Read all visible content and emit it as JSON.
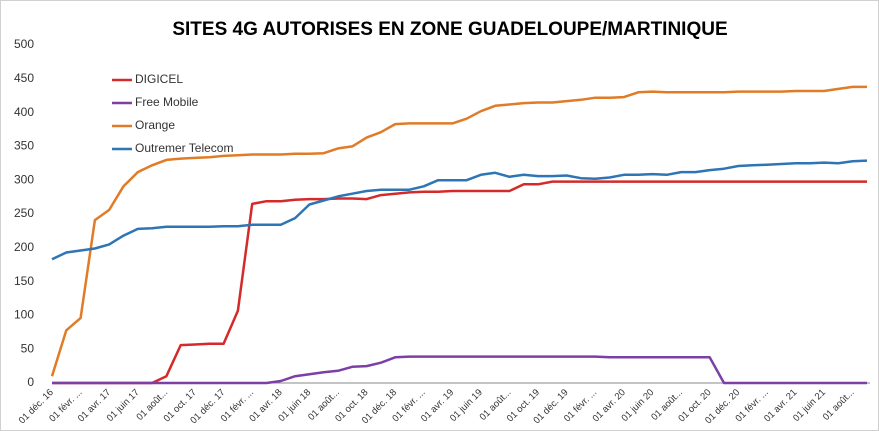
{
  "chart_data": {
    "type": "line",
    "title": "SITES 4G AUTORISES EN ZONE GUADELOUPE/MARTINIQUE",
    "categories": [
      "01 déc. 16",
      null,
      "01 févr. ...",
      null,
      "01 avr. 17",
      null,
      "01 juin 17",
      null,
      "01 août...",
      null,
      "01 oct. 17",
      null,
      "01 déc. 17",
      null,
      "01 févr. ...",
      null,
      "01 avr. 18",
      null,
      "01 juin 18",
      null,
      "01 août...",
      null,
      "01 oct. 18",
      null,
      "01 déc. 18",
      null,
      "01 févr. ...",
      null,
      "01 avr. 19",
      null,
      "01 juin 19",
      null,
      "01 août...",
      null,
      "01 oct. 19",
      null,
      "01 déc. 19",
      null,
      "01 févr. ...",
      null,
      "01 avr. 20",
      null,
      "01 juin 20",
      null,
      "01 août...",
      null,
      "01 oct. 20",
      null,
      "01 déc. 20",
      null,
      "01 févr. ...",
      null,
      "01 avr. 21",
      null,
      "01 juin 21",
      null,
      "01 août...",
      null
    ],
    "series": [
      {
        "name": "DIGICEL",
        "color": "#d42a2a",
        "values": [
          0,
          0,
          0,
          0,
          0,
          0,
          0,
          0,
          10,
          56,
          57,
          58,
          58,
          107,
          265,
          269,
          269,
          271,
          272,
          272,
          273,
          273,
          272,
          278,
          280,
          282,
          283,
          283,
          284,
          284,
          284,
          284,
          284,
          294,
          294,
          298,
          298,
          298,
          298,
          298,
          298,
          298,
          298,
          298,
          298,
          298,
          298,
          298,
          298,
          298,
          298,
          298,
          298,
          298,
          298,
          298,
          298,
          298
        ]
      },
      {
        "name": "Free Mobile",
        "color": "#7b3fa6",
        "values": [
          0,
          0,
          0,
          0,
          0,
          0,
          0,
          0,
          0,
          0,
          0,
          0,
          0,
          0,
          0,
          0,
          3,
          10,
          13,
          16,
          18,
          24,
          25,
          30,
          38,
          39,
          39,
          39,
          39,
          39,
          39,
          39,
          39,
          39,
          39,
          39,
          39,
          39,
          39,
          38,
          38,
          38,
          38,
          38,
          38,
          38,
          38,
          0,
          0,
          0,
          0,
          0,
          0,
          0,
          0,
          0,
          0,
          0
        ]
      },
      {
        "name": "Orange",
        "color": "#e07b27",
        "values": [
          10,
          78,
          96,
          241,
          256,
          291,
          312,
          322,
          330,
          332,
          333,
          334,
          336,
          337,
          338,
          338,
          338,
          339,
          339,
          340,
          347,
          350,
          363,
          371,
          383,
          384,
          384,
          384,
          384,
          391,
          402,
          410,
          412,
          414,
          415,
          415,
          417,
          419,
          422,
          422,
          423,
          430,
          431,
          430,
          430,
          430,
          430,
          430,
          431,
          431,
          431,
          431,
          432,
          432,
          432,
          435,
          438,
          438
        ]
      },
      {
        "name": "Outremer Telecom",
        "color": "#2e75b6",
        "values": [
          183,
          193,
          196,
          199,
          205,
          218,
          228,
          229,
          231,
          231,
          231,
          231,
          232,
          232,
          234,
          234,
          234,
          244,
          264,
          270,
          276,
          280,
          284,
          286,
          286,
          286,
          291,
          300,
          300,
          300,
          308,
          311,
          305,
          308,
          306,
          306,
          307,
          303,
          302,
          304,
          308,
          308,
          309,
          308,
          312,
          312,
          315,
          317,
          321,
          322,
          323,
          324,
          325,
          325,
          326,
          325,
          328,
          329
        ]
      }
    ],
    "ylim": [
      0,
      500
    ],
    "yticks": [
      0,
      50,
      100,
      150,
      200,
      250,
      300,
      350,
      400,
      450,
      500
    ],
    "grid": false,
    "legend": "top-left"
  }
}
